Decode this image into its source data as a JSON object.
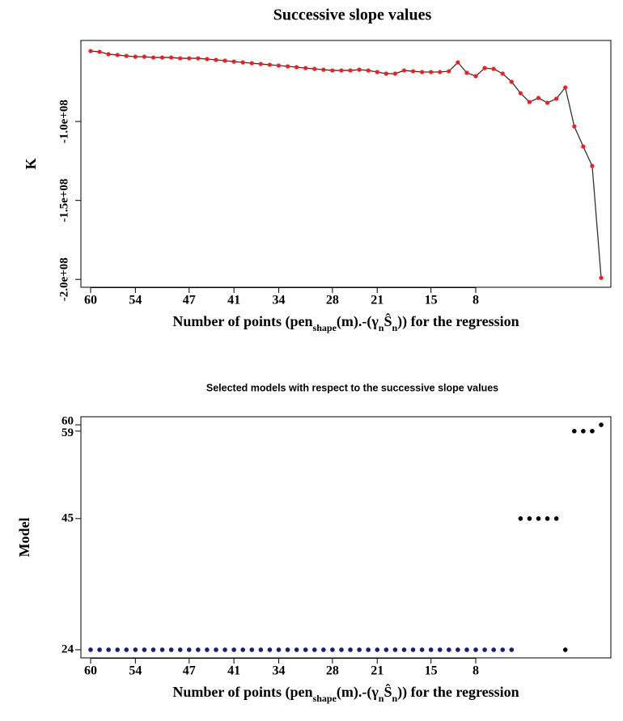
{
  "chart_data": [
    {
      "type": "line",
      "title": "Successive slope values",
      "ylabel": "K",
      "xlabel": [
        "Number of points (pen",
        "shape",
        "(m).-(γ",
        "n",
        "Ŝ",
        "n",
        ")) for the regression"
      ],
      "categories": [
        "60",
        null,
        null,
        null,
        null,
        "54",
        null,
        null,
        null,
        null,
        null,
        "47",
        null,
        null,
        null,
        null,
        "41",
        null,
        null,
        null,
        null,
        "34",
        null,
        null,
        null,
        null,
        null,
        "28",
        null,
        null,
        null,
        null,
        "21",
        null,
        null,
        null,
        null,
        null,
        "15",
        null,
        null,
        null,
        null,
        "8",
        null,
        null,
        null,
        null,
        null,
        null,
        null,
        null,
        null,
        null,
        null,
        null,
        null,
        null
      ],
      "values": [
        -55400000,
        -55900000,
        -57400000,
        -57900000,
        -58500000,
        -59000000,
        -59000000,
        -59500000,
        -59500000,
        -59500000,
        -60000000,
        -60000000,
        -60000000,
        -60500000,
        -61000000,
        -61500000,
        -62100000,
        -62600000,
        -63100000,
        -63600000,
        -64100000,
        -64600000,
        -65100000,
        -65600000,
        -66200000,
        -66700000,
        -67200000,
        -67700000,
        -67700000,
        -67700000,
        -67200000,
        -67700000,
        -68700000,
        -69700000,
        -69700000,
        -67700000,
        -68200000,
        -68700000,
        -68700000,
        -68700000,
        -68200000,
        -62600000,
        -69200000,
        -71300000,
        -66200000,
        -66700000,
        -69700000,
        -74900000,
        -82100000,
        -87700000,
        -85100000,
        -88200000,
        -85600000,
        -78500000,
        -103100000,
        -115900000,
        -128200000,
        -199000000
      ],
      "color": "#333333",
      "marker_color": "#ff1a1a",
      "ylim": [
        -205000000,
        -48700000
      ],
      "yticks": [
        {
          "value": -100000000,
          "label": "-1.0e+08"
        },
        {
          "value": -150000000,
          "label": "-1.5e+08"
        },
        {
          "value": -200000000,
          "label": "-2.0e+08"
        }
      ],
      "grid": false
    },
    {
      "type": "scatter",
      "title": "Selected models with respect to the successive slope values",
      "ylabel": "Model",
      "xlabel": [
        "Number of points (pen",
        "shape",
        "(m).-(γ",
        "n",
        "Ŝ",
        "n",
        ")) for the regression"
      ],
      "categories": [
        "60",
        null,
        null,
        null,
        null,
        "54",
        null,
        null,
        null,
        null,
        null,
        "47",
        null,
        null,
        null,
        null,
        "41",
        null,
        null,
        null,
        null,
        "34",
        null,
        null,
        null,
        null,
        null,
        "28",
        null,
        null,
        null,
        null,
        "21",
        null,
        null,
        null,
        null,
        null,
        "15",
        null,
        null,
        null,
        null,
        "8",
        null,
        null,
        null,
        null,
        null,
        null,
        null,
        null,
        null,
        null,
        null,
        null,
        null,
        null
      ],
      "values": [
        24,
        24,
        24,
        24,
        24,
        24,
        24,
        24,
        24,
        24,
        24,
        24,
        24,
        24,
        24,
        24,
        24,
        24,
        24,
        24,
        24,
        24,
        24,
        24,
        24,
        24,
        24,
        24,
        24,
        24,
        24,
        24,
        24,
        24,
        24,
        24,
        24,
        24,
        24,
        24,
        24,
        24,
        24,
        24,
        24,
        24,
        24,
        24,
        45,
        45,
        45,
        45,
        45,
        24,
        59,
        59,
        59,
        60
      ],
      "colors": [
        "#1c1c7a",
        "#1c1c7a",
        "#1c1c7a",
        "#1c1c7a",
        "#1c1c7a",
        "#1c1c7a",
        "#1c1c7a",
        "#1c1c7a",
        "#1c1c7a",
        "#1c1c7a",
        "#1c1c7a",
        "#1c1c7a",
        "#1c1c7a",
        "#1c1c7a",
        "#1c1c7a",
        "#1c1c7a",
        "#1c1c7a",
        "#1c1c7a",
        "#1c1c7a",
        "#1c1c7a",
        "#1c1c7a",
        "#1c1c7a",
        "#1c1c7a",
        "#1c1c7a",
        "#1c1c7a",
        "#1c1c7a",
        "#1c1c7a",
        "#1c1c7a",
        "#1c1c7a",
        "#1c1c7a",
        "#1c1c7a",
        "#1c1c7a",
        "#1c1c7a",
        "#1c1c7a",
        "#1c1c7a",
        "#1c1c7a",
        "#1c1c7a",
        "#1c1c7a",
        "#1c1c7a",
        "#1c1c7a",
        "#1c1c7a",
        "#1c1c7a",
        "#1c1c7a",
        "#1c1c7a",
        "#1c1c7a",
        "#1c1c7a",
        "#1c1c7a",
        "#1c1c7a",
        "#000000",
        "#000000",
        "#000000",
        "#000000",
        "#000000",
        "#000000",
        "#000000",
        "#000000",
        "#000000",
        "#000000"
      ],
      "ylim": [
        22.7,
        61.3
      ],
      "yticks": [
        24,
        45,
        59,
        60
      ],
      "grid": false
    }
  ]
}
